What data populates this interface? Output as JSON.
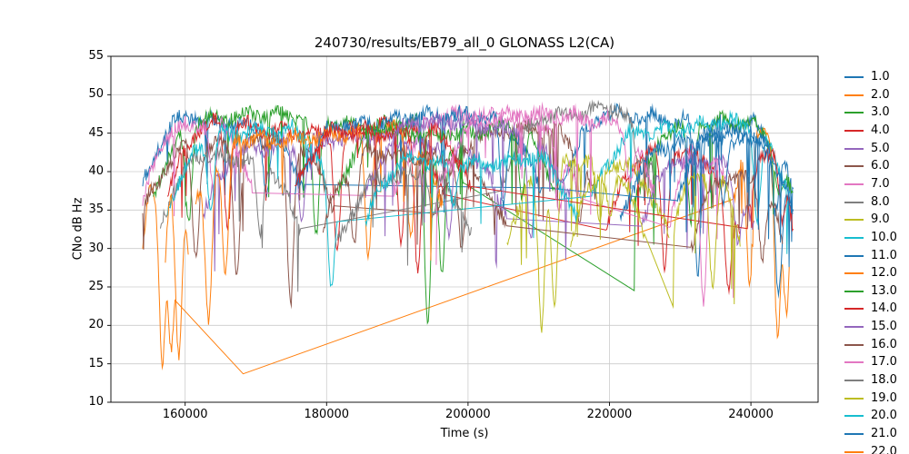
{
  "chart_data": {
    "type": "line",
    "title": "240730/results/EB79_all_0 GLONASS L2(CA)",
    "xlabel": "Time (s)",
    "ylabel": "CNo dB Hz",
    "xlim": [
      149500,
      249500
    ],
    "ylim": [
      10,
      55
    ],
    "xticks": [
      160000,
      180000,
      200000,
      220000,
      240000
    ],
    "yticks": [
      10,
      15,
      20,
      25,
      30,
      35,
      40,
      45,
      50,
      55
    ],
    "grid": true,
    "grid_color": "#cccccc",
    "axis_color": "#000000",
    "legend_position": "outside-right",
    "series": [
      {
        "name": "1.0",
        "color": "#1f77b4",
        "passes": [
          {
            "t0": 154000,
            "t1": 177000,
            "peak": 49,
            "fades": [
              [
                171500,
                36
              ]
            ]
          },
          {
            "t0": 213000,
            "t1": 246000,
            "peak": 49,
            "fades": [
              [
                232500,
                26
              ],
              [
                243500,
                34
              ]
            ]
          }
        ]
      },
      {
        "name": "2.0",
        "color": "#ff7f0e",
        "passes": [
          {
            "t0": 154000,
            "t1": 158600,
            "peak": 41,
            "fades": [
              [
                156800,
                14
              ],
              [
                158000,
                16
              ]
            ]
          },
          {
            "t0": 237500,
            "t1": 245500,
            "peak": 47,
            "fades": [
              [
                239800,
                25
              ],
              [
                243800,
                18
              ],
              [
                245000,
                21
              ]
            ]
          }
        ],
        "gaps": [
          [
            168200,
            13.7
          ]
        ]
      },
      {
        "name": "3.0",
        "color": "#2ca02c",
        "passes": [
          {
            "t0": 155500,
            "t1": 199500,
            "peak": 49,
            "fades": [
              [
                160500,
                33
              ],
              [
                178500,
                31
              ],
              [
                194300,
                19
              ],
              [
                196300,
                26
              ]
            ]
          },
          {
            "t0": 223500,
            "t1": 246000,
            "peak": 48,
            "fades": [
              [
                231500,
                33
              ],
              [
                244000,
                36
              ]
            ]
          }
        ]
      },
      {
        "name": "4.0",
        "color": "#d62728",
        "passes": [
          {
            "t0": 157500,
            "t1": 196500,
            "peak": 48,
            "fades": [
              [
                166000,
                32
              ],
              [
                181500,
                29
              ],
              [
                190500,
                30
              ]
            ]
          },
          {
            "t0": 219500,
            "t1": 238500,
            "peak": 44,
            "fades": [
              [
                227800,
                27
              ],
              [
                236800,
                24
              ]
            ]
          }
        ]
      },
      {
        "name": "5.0",
        "color": "#9467bd",
        "passes": [
          {
            "t0": 162500,
            "t1": 205500,
            "peak": 46,
            "fades": [
              [
                176500,
                33
              ],
              [
                197300,
                31
              ]
            ]
          },
          {
            "t0": 224500,
            "t1": 240500,
            "peak": 44,
            "fades": [
              [
                238200,
                30
              ]
            ]
          }
        ]
      },
      {
        "name": "6.0",
        "color": "#8c564b",
        "passes": [
          {
            "t0": 154000,
            "t1": 181000,
            "peak": 46,
            "fades": [
              [
                161500,
                28
              ],
              [
                167300,
                26
              ],
              [
                174900,
                22
              ]
            ]
          },
          {
            "t0": 195500,
            "t1": 218500,
            "peak": 47,
            "fades": [
              [
                215800,
                33
              ]
            ]
          }
        ]
      },
      {
        "name": "7.0",
        "color": "#e377c2",
        "passes": [
          {
            "t0": 154000,
            "t1": 169500,
            "peak": 48,
            "fades": [
              [
                164000,
                37
              ]
            ]
          },
          {
            "t0": 189500,
            "t1": 216000,
            "peak": 49,
            "fades": [
              [
                212900,
                34
              ]
            ]
          },
          {
            "t0": 228500,
            "t1": 237500,
            "peak": 44,
            "fades": [
              [
                233300,
                22
              ]
            ]
          }
        ]
      },
      {
        "name": "8.0",
        "color": "#7f7f7f",
        "passes": [
          {
            "t0": 156500,
            "t1": 176500,
            "peak": 44,
            "fades": [
              [
                170600,
                31
              ]
            ]
          },
          {
            "t0": 204500,
            "t1": 226500,
            "peak": 50,
            "fades": [
              [
                224200,
                40
              ]
            ]
          }
        ]
      },
      {
        "name": "9.0",
        "color": "#bcbd22",
        "passes": [
          {
            "t0": 205500,
            "t1": 228500,
            "peak": 43,
            "fades": [
              [
                210400,
                19
              ],
              [
                212200,
                22
              ],
              [
                218600,
                33
              ]
            ]
          }
        ]
      },
      {
        "name": "10.0",
        "color": "#17becf",
        "passes": [
          {
            "t0": 157500,
            "t1": 181500,
            "peak": 47,
            "fades": [
              [
                163600,
                34
              ],
              [
                180700,
                24
              ]
            ]
          },
          {
            "t0": 217500,
            "t1": 245500,
            "peak": 48,
            "fades": [
              [
                240900,
                33
              ]
            ]
          }
        ]
      },
      {
        "name": "11.0",
        "color": "#1f77b4",
        "passes": [
          {
            "t0": 175500,
            "t1": 210500,
            "peak": 49,
            "fades": [
              [
                205000,
                35
              ]
            ]
          },
          {
            "t0": 229500,
            "t1": 246000,
            "peak": 47,
            "fades": [
              [
                243900,
                23
              ]
            ]
          }
        ]
      },
      {
        "name": "12.0",
        "color": "#ff7f0e",
        "passes": [
          {
            "t0": 161500,
            "t1": 196500,
            "peak": 47,
            "fades": [
              [
                163300,
                20
              ],
              [
                165700,
                26
              ],
              [
                185900,
                28
              ],
              [
                191900,
                31
              ]
            ]
          }
        ]
      },
      {
        "name": "13.0",
        "color": "#2ca02c",
        "passes": [
          {
            "t0": 181500,
            "t1": 212500,
            "peak": 48,
            "fades": [
              [
                207600,
                36
              ]
            ]
          }
        ]
      },
      {
        "name": "14.0",
        "color": "#d62728",
        "passes": [
          {
            "t0": 175500,
            "t1": 200500,
            "peak": 48,
            "fades": [
              [
                192900,
                26
              ]
            ]
          },
          {
            "t0": 239500,
            "t1": 246000,
            "peak": 44,
            "fades": [
              [
                244500,
                33
              ]
            ]
          }
        ]
      },
      {
        "name": "15.0",
        "color": "#9467bd",
        "passes": [
          {
            "t0": 185500,
            "t1": 214500,
            "peak": 48,
            "fades": [
              [
                208900,
                30
              ]
            ]
          }
        ]
      },
      {
        "name": "16.0",
        "color": "#8c564b",
        "passes": [
          {
            "t0": 179500,
            "t1": 205500,
            "peak": 44,
            "fades": [
              [
                183900,
                30
              ],
              [
                199100,
                29
              ]
            ]
          },
          {
            "t0": 231500,
            "t1": 244500,
            "peak": 42,
            "fades": [
              [
                241600,
                28
              ]
            ]
          }
        ]
      },
      {
        "name": "17.0",
        "color": "#e377c2",
        "passes": [
          {
            "t0": 195500,
            "t1": 226500,
            "peak": 49,
            "fades": [
              [
                222900,
                38
              ]
            ]
          }
        ]
      },
      {
        "name": "18.0",
        "color": "#7f7f7f",
        "passes": [
          {
            "t0": 181500,
            "t1": 200500,
            "peak": 42,
            "fades": [
              [
                195100,
                33
              ]
            ]
          }
        ]
      },
      {
        "name": "19.0",
        "color": "#bcbd22",
        "passes": [
          {
            "t0": 214500,
            "t1": 225000,
            "peak": 41,
            "fades": [
              [
                220100,
                34
              ]
            ]
          },
          {
            "t0": 229000,
            "t1": 238500,
            "peak": 42,
            "fades": [
              [
                234600,
                24
              ]
            ]
          }
        ]
      },
      {
        "name": "20.0",
        "color": "#17becf",
        "passes": [
          {
            "t0": 185500,
            "t1": 215500,
            "peak": 44,
            "fades": [
              [
                197900,
                35
              ]
            ]
          }
        ]
      },
      {
        "name": "21.0",
        "color": "#1f77b4",
        "passes": [
          {
            "t0": 221500,
            "t1": 246000,
            "peak": 46,
            "fades": [
              [
                236100,
                35
              ]
            ]
          }
        ]
      },
      {
        "name": "22.0",
        "color": "#ff7f0e",
        "passes": [
          {
            "t0": 157200,
            "t1": 160500,
            "peak": 40,
            "fades": [
              [
                159100,
                15
              ]
            ]
          }
        ]
      }
    ]
  }
}
